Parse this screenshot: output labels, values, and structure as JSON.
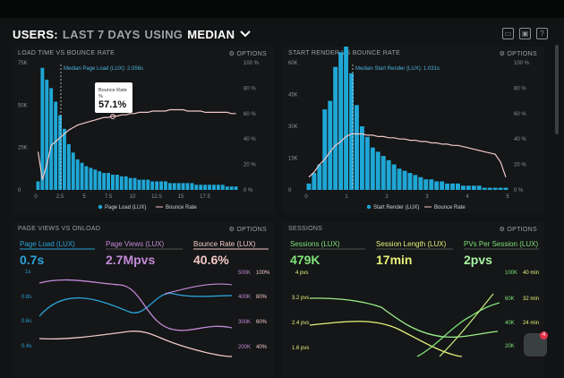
{
  "header": {
    "part1": "USERS:",
    "part2": "LAST 7 DAYS",
    "part3": "USING",
    "part4": "MEDIAN"
  },
  "header_icons": [
    "monitor-icon",
    "image-icon",
    "help-icon"
  ],
  "panels": {
    "load_time": {
      "title": "LOAD TIME VS BOUNCE RATE",
      "options": "⚙ OPTIONS",
      "median_label": "Median Page Load (LUX): 2.056s",
      "tooltip_label": "Bounce Rate",
      "tooltip_sub": "%",
      "tooltip_value": "57.1%",
      "legend_a": "Page Load (LUX)",
      "legend_b": "Bounce Rate"
    },
    "start_render": {
      "title": "START RENDER VS BOUNCE RATE",
      "options": "⚙ OPTIONS",
      "median_label": "Median Start Render (LUX): 1.031s",
      "legend_a": "Start Render (LUX)",
      "legend_b": "Bounce Rate"
    },
    "page_views": {
      "title": "PAGE VIEWS VS ONLOAD",
      "options": "⚙ OPTIONS",
      "m1_label": "Page Load (LUX)",
      "m1_value": "0.7s",
      "m2_label": "Page Views (LUX)",
      "m2_value": "2.7Mpvs",
      "m3_label": "Bounce Rate (LUX)",
      "m3_value": "40.6%"
    },
    "sessions": {
      "title": "SESSIONS",
      "options": "⚙ OPTIONS",
      "m1_label": "Sessions (LUX)",
      "m1_value": "479K",
      "m2_label": "Session Length (LUX)",
      "m2_value": "17min",
      "m3_label": "PVs Per Session (LUX)",
      "m3_value": "2pvs"
    }
  },
  "chat_badge": "4",
  "colors": {
    "bar": "#1fa7d6",
    "bounce": "#f2c7c7",
    "pv": "#c48ad9",
    "green": "#7fe27a",
    "yellow": "#e6f27a",
    "teal": "#41c5c0"
  },
  "chart_data": [
    {
      "type": "bar",
      "title": "LOAD TIME VS BOUNCE RATE",
      "x_ticks": [
        "0",
        "2.5",
        "5",
        "7.5",
        "10",
        "12.5",
        "15",
        "17.5"
      ],
      "y_ticks": [
        "0",
        "25K",
        "50K",
        "75K"
      ],
      "y2_ticks": [
        "0 %",
        "20 %",
        "40 %",
        "60 %",
        "80 %",
        "100 %"
      ],
      "series": [
        {
          "name": "Page Load (LUX)",
          "values": [
            5,
            72,
            65,
            60,
            52,
            44,
            36,
            27,
            22,
            18,
            16,
            14,
            13,
            12,
            11,
            10,
            10,
            9,
            9,
            8,
            8,
            7,
            7,
            6,
            6,
            6,
            5,
            5,
            5,
            5,
            4,
            4,
            4,
            4,
            4,
            4,
            3,
            3,
            3,
            3,
            3,
            3,
            3,
            2,
            2,
            2
          ]
        },
        {
          "name": "Bounce Rate",
          "values": [
            30,
            8,
            20,
            35,
            38,
            41,
            44,
            47,
            49,
            51,
            52,
            53,
            54,
            55,
            56,
            57,
            57,
            58,
            58,
            59,
            59,
            60,
            60,
            61,
            61,
            61,
            62,
            62,
            62,
            62,
            63,
            63,
            63,
            63,
            62,
            62,
            62,
            62,
            61,
            61,
            61,
            61,
            61,
            61,
            60,
            60
          ]
        }
      ]
    },
    {
      "type": "bar",
      "title": "START RENDER VS BOUNCE RATE",
      "x_ticks": [
        "0",
        "1",
        "2",
        "3",
        "4",
        "5"
      ],
      "y_ticks": [
        "0",
        "15K",
        "30K",
        "45K",
        "60K"
      ],
      "y2_ticks": [
        "0 %",
        "20 %",
        "40 %",
        "60 %",
        "80 %",
        "100 %"
      ],
      "series": [
        {
          "name": "Start Render (LUX)",
          "values": [
            3,
            8,
            12,
            38,
            42,
            58,
            65,
            68,
            55,
            40,
            30,
            25,
            20,
            18,
            16,
            14,
            12,
            10,
            9,
            8,
            7,
            6,
            5,
            5,
            4,
            4,
            3,
            3,
            3,
            2,
            2,
            2,
            2,
            1,
            1,
            1,
            1,
            1
          ]
        },
        {
          "name": "Bounce Rate",
          "values": [
            10,
            14,
            20,
            24,
            30,
            35,
            38,
            42,
            44,
            44,
            44,
            43,
            43,
            42,
            42,
            41,
            41,
            40,
            40,
            39,
            39,
            38,
            38,
            37,
            37,
            36,
            36,
            35,
            35,
            34,
            33,
            32,
            31,
            30,
            29,
            28,
            22,
            10
          ]
        }
      ]
    }
  ]
}
